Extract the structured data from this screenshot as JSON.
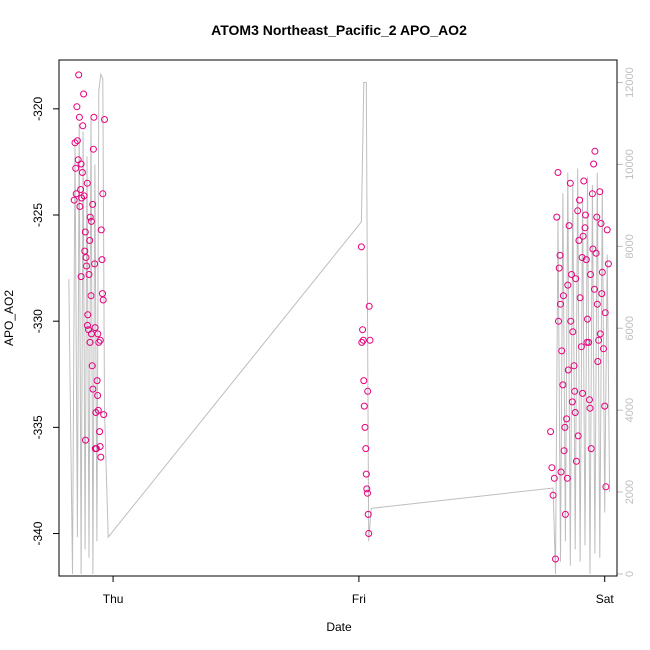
{
  "chart_data": {
    "type": "scatter",
    "title": "ATOM3 Northeast_Pacific_2 APO_AO2",
    "xlabel": "Date",
    "ylabel": "APO_AO2",
    "x_ticks": [
      {
        "label": "Thu",
        "value": 1.0
      },
      {
        "label": "Fri",
        "value": 2.0
      },
      {
        "label": "Sat",
        "value": 3.0
      }
    ],
    "xlim": [
      0.78,
      3.05
    ],
    "ylim": [
      -342,
      -317.7
    ],
    "y_ticks": [
      -340,
      -335,
      -330,
      -325,
      -320
    ],
    "right_axis": {
      "ylim": [
        -50,
        12550
      ],
      "ticks": [
        0,
        2000,
        4000,
        6000,
        8000,
        10000,
        12000
      ],
      "color": "#bebebe"
    },
    "point_color": "#e6007e",
    "line_color": "#bebebe",
    "series": [
      {
        "points": [
          [
            0.842,
            -324.3
          ],
          [
            0.845,
            -321.6
          ],
          [
            0.848,
            -322.8
          ],
          [
            0.85,
            -324.0
          ],
          [
            0.853,
            -319.9
          ],
          [
            0.855,
            -321.5
          ],
          [
            0.858,
            -322.4
          ],
          [
            0.86,
            -318.4
          ],
          [
            0.863,
            -320.4
          ],
          [
            0.865,
            -324.6
          ],
          [
            0.868,
            -323.8
          ],
          [
            0.87,
            -322.6
          ],
          [
            0.872,
            -324.2
          ],
          [
            0.875,
            -323.0
          ],
          [
            0.877,
            -320.8
          ],
          [
            0.88,
            -319.3
          ],
          [
            0.882,
            -324.1
          ],
          [
            0.885,
            -326.7
          ],
          [
            0.887,
            -325.8
          ],
          [
            0.89,
            -327.0
          ],
          [
            0.892,
            -327.4
          ],
          [
            0.895,
            -323.5
          ],
          [
            0.897,
            -329.7
          ],
          [
            0.9,
            -330.4
          ],
          [
            0.902,
            -327.8
          ],
          [
            0.905,
            -326.2
          ],
          [
            0.907,
            -325.1
          ],
          [
            0.91,
            -328.8
          ],
          [
            0.912,
            -330.6
          ],
          [
            0.915,
            -332.1
          ],
          [
            0.917,
            -324.5
          ],
          [
            0.92,
            -321.9
          ],
          [
            0.922,
            -320.4
          ],
          [
            0.925,
            -327.3
          ],
          [
            0.927,
            -330.3
          ],
          [
            0.93,
            -334.3
          ],
          [
            0.932,
            -336.0
          ],
          [
            0.935,
            -332.8
          ],
          [
            0.937,
            -333.5
          ],
          [
            0.94,
            -334.2
          ],
          [
            0.942,
            -331.0
          ],
          [
            0.945,
            -335.2
          ],
          [
            0.947,
            -335.9
          ],
          [
            0.95,
            -336.4
          ],
          [
            0.952,
            -325.7
          ],
          [
            0.955,
            -327.1
          ],
          [
            0.957,
            -328.7
          ],
          [
            0.96,
            -329.0
          ],
          [
            0.962,
            -334.4
          ],
          [
            0.965,
            -320.5
          ],
          [
            0.87,
            -327.9
          ],
          [
            0.888,
            -335.6
          ],
          [
            0.896,
            -330.2
          ],
          [
            0.906,
            -331.0
          ],
          [
            0.918,
            -333.2
          ],
          [
            0.928,
            -336.0
          ],
          [
            0.938,
            -330.6
          ],
          [
            0.948,
            -330.9
          ],
          [
            0.958,
            -324.0
          ],
          [
            0.912,
            -325.3
          ],
          [
            2.01,
            -326.5
          ],
          [
            2.015,
            -330.4
          ],
          [
            2.018,
            -330.9
          ],
          [
            2.02,
            -332.8
          ],
          [
            2.022,
            -334.0
          ],
          [
            2.025,
            -335.0
          ],
          [
            2.028,
            -336.0
          ],
          [
            2.03,
            -337.2
          ],
          [
            2.032,
            -337.9
          ],
          [
            2.035,
            -338.1
          ],
          [
            2.038,
            -339.1
          ],
          [
            2.04,
            -340.0
          ],
          [
            2.042,
            -329.3
          ],
          [
            2.045,
            -330.9
          ],
          [
            2.012,
            -331.0
          ],
          [
            2.036,
            -333.3
          ],
          [
            2.78,
            -335.2
          ],
          [
            2.785,
            -336.9
          ],
          [
            2.79,
            -338.2
          ],
          [
            2.795,
            -337.4
          ],
          [
            2.8,
            -341.2
          ],
          [
            2.805,
            -325.1
          ],
          [
            2.81,
            -323.0
          ],
          [
            2.815,
            -327.5
          ],
          [
            2.82,
            -329.2
          ],
          [
            2.825,
            -331.4
          ],
          [
            2.83,
            -333.0
          ],
          [
            2.835,
            -336.1
          ],
          [
            2.84,
            -339.1
          ],
          [
            2.845,
            -334.6
          ],
          [
            2.85,
            -328.3
          ],
          [
            2.855,
            -325.5
          ],
          [
            2.86,
            -323.5
          ],
          [
            2.865,
            -327.8
          ],
          [
            2.87,
            -330.5
          ],
          [
            2.875,
            -332.1
          ],
          [
            2.88,
            -334.3
          ],
          [
            2.885,
            -336.6
          ],
          [
            2.89,
            -324.8
          ],
          [
            2.895,
            -326.2
          ],
          [
            2.9,
            -328.9
          ],
          [
            2.905,
            -331.2
          ],
          [
            2.91,
            -333.4
          ],
          [
            2.915,
            -323.4
          ],
          [
            2.92,
            -325.6
          ],
          [
            2.925,
            -327.1
          ],
          [
            2.93,
            -329.9
          ],
          [
            2.935,
            -331.0
          ],
          [
            2.94,
            -334.1
          ],
          [
            2.945,
            -336.0
          ],
          [
            2.95,
            -324.0
          ],
          [
            2.955,
            -322.6
          ],
          [
            2.96,
            -322.0
          ],
          [
            2.965,
            -326.8
          ],
          [
            2.97,
            -329.2
          ],
          [
            2.975,
            -330.9
          ],
          [
            2.98,
            -323.9
          ],
          [
            2.985,
            -325.4
          ],
          [
            2.99,
            -327.7
          ],
          [
            2.995,
            -331.3
          ],
          [
            3.0,
            -334.0
          ],
          [
            3.005,
            -337.8
          ],
          [
            3.01,
            -325.7
          ],
          [
            3.015,
            -327.3
          ],
          [
            2.812,
            -330.0
          ],
          [
            2.822,
            -337.1
          ],
          [
            2.838,
            -335.0
          ],
          [
            2.852,
            -332.3
          ],
          [
            2.868,
            -333.8
          ],
          [
            2.882,
            -328.0
          ],
          [
            2.898,
            -324.3
          ],
          [
            2.912,
            -326.0
          ],
          [
            2.928,
            -331.0
          ],
          [
            2.942,
            -327.8
          ],
          [
            2.958,
            -328.5
          ],
          [
            2.972,
            -331.9
          ],
          [
            2.988,
            -328.7
          ],
          [
            3.002,
            -329.6
          ],
          [
            2.818,
            -326.9
          ],
          [
            2.832,
            -328.8
          ],
          [
            2.848,
            -337.4
          ],
          [
            2.862,
            -330.0
          ],
          [
            2.878,
            -333.3
          ],
          [
            2.892,
            -335.4
          ],
          [
            2.908,
            -327.0
          ],
          [
            2.922,
            -325.0
          ],
          [
            2.938,
            -333.7
          ],
          [
            2.952,
            -326.6
          ],
          [
            2.968,
            -325.1
          ],
          [
            2.982,
            -330.6
          ]
        ]
      },
      {
        "axis": "right",
        "line_points": [
          [
            0.82,
            7200
          ],
          [
            0.835,
            0
          ],
          [
            0.845,
            10500
          ],
          [
            0.855,
            900
          ],
          [
            0.862,
            11000
          ],
          [
            0.87,
            0
          ],
          [
            0.878,
            10800
          ],
          [
            0.886,
            600
          ],
          [
            0.894,
            10200
          ],
          [
            0.902,
            400
          ],
          [
            0.91,
            11200
          ],
          [
            0.918,
            0
          ],
          [
            0.926,
            10000
          ],
          [
            0.934,
            800
          ],
          [
            0.942,
            11800
          ],
          [
            0.95,
            12200
          ],
          [
            0.958,
            12100
          ],
          [
            0.965,
            4000
          ],
          [
            0.98,
            900
          ],
          [
            2.01,
            8600
          ],
          [
            2.02,
            12000
          ],
          [
            2.03,
            12000
          ],
          [
            2.04,
            800
          ],
          [
            2.05,
            1600
          ],
          [
            2.79,
            2100
          ],
          [
            2.8,
            0
          ],
          [
            2.81,
            8700
          ],
          [
            2.82,
            300
          ],
          [
            2.83,
            9300
          ],
          [
            2.84,
            800
          ],
          [
            2.85,
            9800
          ],
          [
            2.86,
            200
          ],
          [
            2.87,
            9500
          ],
          [
            2.88,
            600
          ],
          [
            2.89,
            9900
          ],
          [
            2.9,
            300
          ],
          [
            2.91,
            9200
          ],
          [
            2.92,
            700
          ],
          [
            2.93,
            9700
          ],
          [
            2.94,
            0
          ],
          [
            2.95,
            9500
          ],
          [
            2.96,
            500
          ],
          [
            2.97,
            9800
          ],
          [
            2.98,
            400
          ],
          [
            2.99,
            9400
          ],
          [
            3.0,
            1500
          ],
          [
            3.01,
            7800
          ],
          [
            3.02,
            2000
          ]
        ]
      }
    ]
  }
}
